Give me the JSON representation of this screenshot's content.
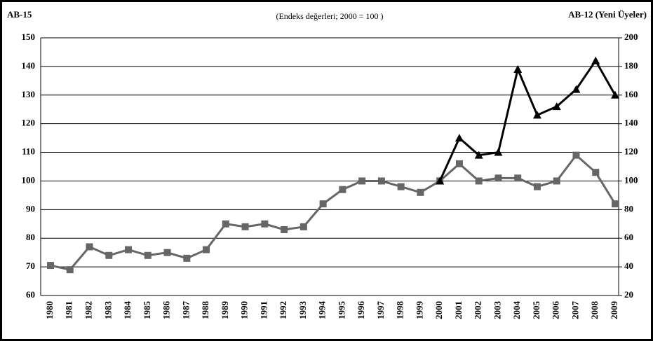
{
  "chart_data": {
    "type": "line",
    "title": "(Endeks değerleri; 2000 = 100 )",
    "y_label": "AB-15",
    "y2_label": "AB-12 (Yeni Üyeler)",
    "categories": [
      "1980",
      "1981",
      "1982",
      "1983",
      "1984",
      "1985",
      "1986",
      "1987",
      "1988",
      "1989",
      "1990",
      "1991",
      "1992",
      "1993",
      "1994",
      "1995",
      "1996",
      "1997",
      "1998",
      "1999",
      "2000",
      "2001",
      "2002",
      "2003",
      "2004",
      "2005",
      "2006",
      "2007",
      "2008",
      "2009"
    ],
    "series": [
      {
        "color": "#666666",
        "marker": "square",
        "values": [
          70.5,
          69,
          77,
          74,
          76,
          74,
          75,
          73,
          76,
          85,
          84,
          85,
          83,
          84,
          92,
          97,
          100,
          100,
          98,
          96,
          100,
          106,
          100,
          101,
          101,
          98,
          100,
          109,
          103,
          92
        ]
      },
      {
        "color": "#000000",
        "marker": "triangle",
        "axis": "y2",
        "values": [
          null,
          null,
          null,
          null,
          null,
          null,
          null,
          null,
          null,
          null,
          null,
          null,
          null,
          null,
          null,
          null,
          null,
          null,
          null,
          null,
          100,
          130,
          118,
          120,
          178,
          146,
          152,
          164,
          184,
          160
        ]
      }
    ],
    "ylim": [
      60,
      150
    ],
    "yticks": [
      60,
      70,
      80,
      90,
      100,
      110,
      120,
      130,
      140,
      150
    ],
    "y2lim": [
      20,
      200
    ],
    "y2ticks": [
      20,
      40,
      60,
      80,
      100,
      120,
      140,
      160,
      180,
      200
    ],
    "grid": true
  }
}
